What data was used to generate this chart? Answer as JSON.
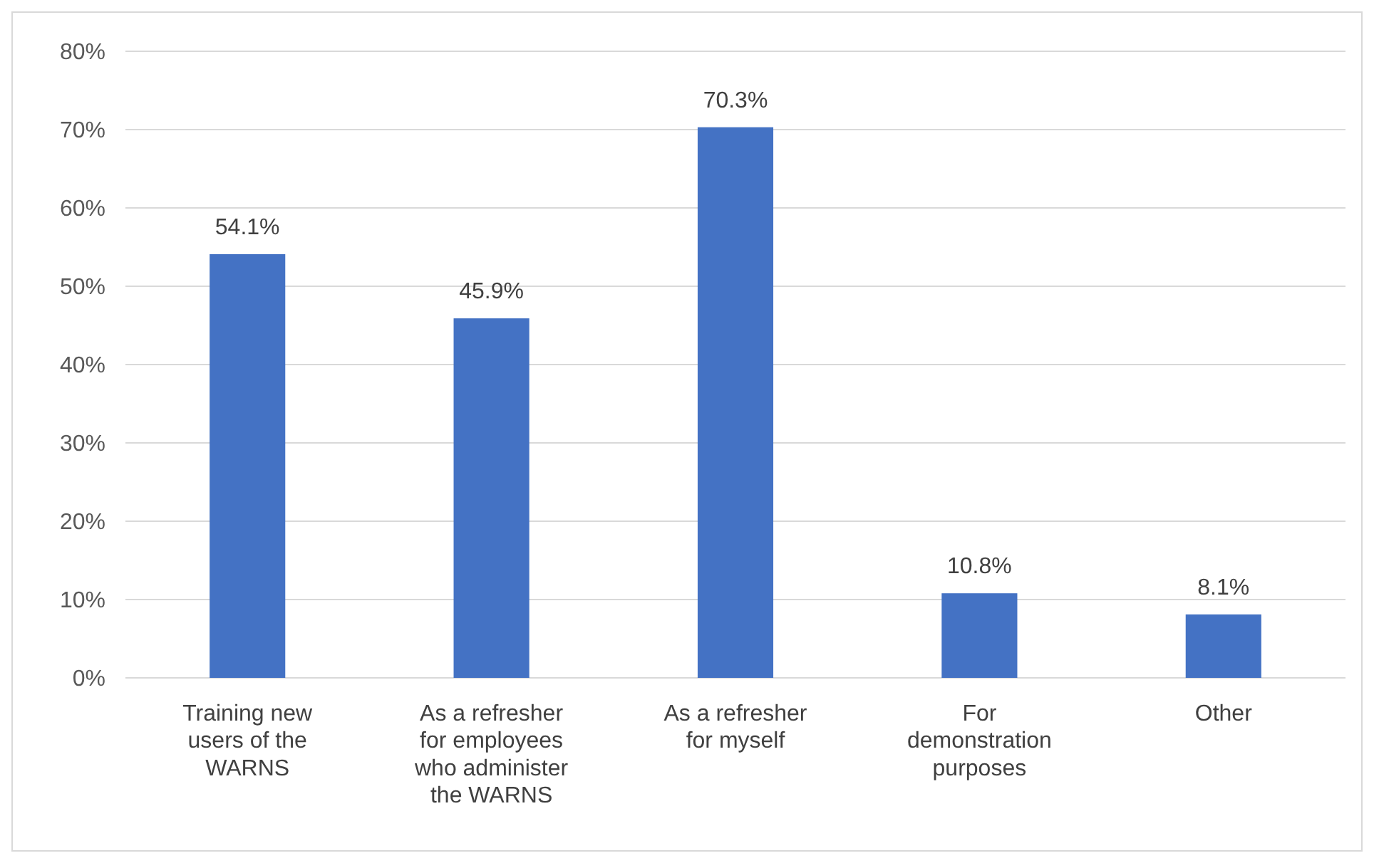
{
  "chart_data": {
    "type": "bar",
    "categories": [
      "Training new users of the WARNS",
      "As a refresher for employees who administer the WARNS",
      "As a refresher for myself",
      "For demonstration purposes",
      "Other"
    ],
    "values": [
      54.1,
      45.9,
      70.3,
      10.8,
      8.1
    ],
    "value_labels": [
      "54.1%",
      "45.9%",
      "70.3%",
      "10.8%",
      "8.1%"
    ],
    "color": "#4472c4",
    "ylim": [
      0,
      80
    ],
    "yticks": [
      {
        "value": 0,
        "label": "0%"
      },
      {
        "value": 10,
        "label": "10%"
      },
      {
        "value": 20,
        "label": "20%"
      },
      {
        "value": 30,
        "label": "30%"
      },
      {
        "value": 40,
        "label": "40%"
      },
      {
        "value": 50,
        "label": "50%"
      },
      {
        "value": 60,
        "label": "60%"
      },
      {
        "value": 70,
        "label": "70%"
      },
      {
        "value": 80,
        "label": "80%"
      }
    ],
    "grid": "y"
  }
}
